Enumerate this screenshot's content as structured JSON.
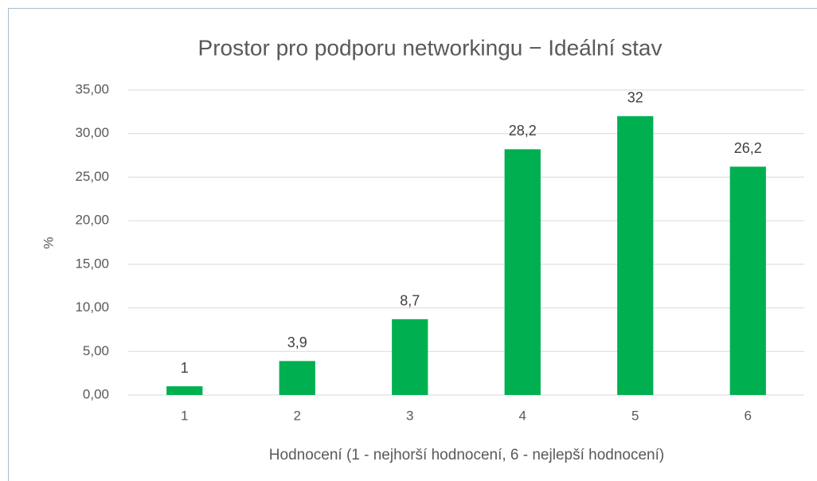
{
  "chart_data": {
    "type": "bar",
    "title": "Prostor pro podporu networkingu − Ideální stav",
    "x_label": "Hodnocení (1 - nejhorší hodnocení, 6 - nejlepší hodnocení)",
    "y_label": "%",
    "categories": [
      "1",
      "2",
      "3",
      "4",
      "5",
      "6"
    ],
    "values": [
      1,
      3.9,
      8.7,
      28.2,
      32,
      26.2
    ],
    "value_labels": [
      "1",
      "3,9",
      "8,7",
      "28,2",
      "32",
      "26,2"
    ],
    "color": "#00b050",
    "ylim": [
      0,
      35
    ],
    "yticks": [
      {
        "value": 0,
        "label": "0,00"
      },
      {
        "value": 5,
        "label": "5,00"
      },
      {
        "value": 10,
        "label": "10,00"
      },
      {
        "value": 15,
        "label": "15,00"
      },
      {
        "value": 20,
        "label": "20,00"
      },
      {
        "value": 25,
        "label": "25,00"
      },
      {
        "value": 30,
        "label": "30,00"
      },
      {
        "value": 35,
        "label": "35,00"
      }
    ],
    "grid": true
  }
}
